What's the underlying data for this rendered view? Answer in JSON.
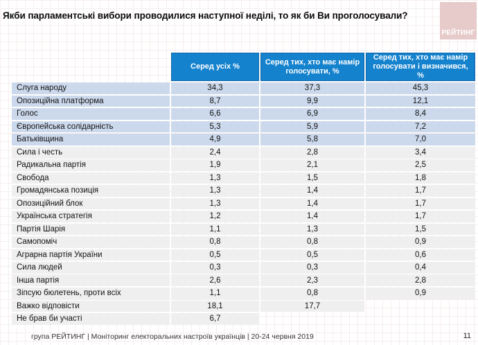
{
  "slide": {
    "title": "Якби парламентські вибори проводилися наступної неділі, то як би Ви проголосували?",
    "logo_text": "РЕЙТИНГ",
    "footer": "група РЕЙТИНГ | Моніторинг електоральних настроїв українців | 20-24 червня 2019",
    "page_number": "11"
  },
  "colors": {
    "header_blue": "#1482cd",
    "header_border": "#0f63a6",
    "highlight_row_blue": "#ccd9ec",
    "row_gray": "#efeff0",
    "logo_pink": "#e7caca"
  },
  "table": {
    "headers": {
      "party": "",
      "among_all": "Серед усіх %",
      "among_intend": "Серед тих, хто має намір голосувати, %",
      "among_decided": "Серед тих, хто має намір голосувати і визначився, %"
    },
    "rows": [
      {
        "party": "Слуга народу",
        "among_all": "34,3",
        "among_intend": "37,3",
        "among_decided": "45,3",
        "highlight": true
      },
      {
        "party": "Опозиційна платформа",
        "among_all": "8,7",
        "among_intend": "9,9",
        "among_decided": "12,1",
        "highlight": true
      },
      {
        "party": "Голос",
        "among_all": "6,6",
        "among_intend": "6,9",
        "among_decided": "8,4",
        "highlight": true
      },
      {
        "party": "Європейська солідарність",
        "among_all": "5,3",
        "among_intend": "5,9",
        "among_decided": "7,2",
        "highlight": true
      },
      {
        "party": "Батьківщина",
        "among_all": "4,9",
        "among_intend": "5,8",
        "among_decided": "7,0",
        "highlight": true
      },
      {
        "party": "Сила і честь",
        "among_all": "2,4",
        "among_intend": "2,8",
        "among_decided": "3,4",
        "highlight": false
      },
      {
        "party": "Радикальна партія",
        "among_all": "1,9",
        "among_intend": "2,1",
        "among_decided": "2,5",
        "highlight": false
      },
      {
        "party": "Свобода",
        "among_all": "1,3",
        "among_intend": "1,5",
        "among_decided": "1,8",
        "highlight": false
      },
      {
        "party": "Громадянська позиція",
        "among_all": "1,3",
        "among_intend": "1,4",
        "among_decided": "1,7",
        "highlight": false
      },
      {
        "party": "Опозиційний блок",
        "among_all": "1,3",
        "among_intend": "1,4",
        "among_decided": "1,7",
        "highlight": false
      },
      {
        "party": "Українська стратегія",
        "among_all": "1,2",
        "among_intend": "1,4",
        "among_decided": "1,7",
        "highlight": false
      },
      {
        "party": "Партія Шарія",
        "among_all": "1,1",
        "among_intend": "1,3",
        "among_decided": "1,5",
        "highlight": false
      },
      {
        "party": "Самопоміч",
        "among_all": "0,8",
        "among_intend": "0,8",
        "among_decided": "0,9",
        "highlight": false
      },
      {
        "party": "Аграрна партія України",
        "among_all": "0,5",
        "among_intend": "0,5",
        "among_decided": "0,6",
        "highlight": false
      },
      {
        "party": "Сила людей",
        "among_all": "0,3",
        "among_intend": "0,3",
        "among_decided": "0,4",
        "highlight": false
      },
      {
        "party": "Інша партія",
        "among_all": "2,6",
        "among_intend": "2,3",
        "among_decided": "2,8",
        "highlight": false
      },
      {
        "party": "Зіпсую бюлетень, проти всіх",
        "among_all": "1,1",
        "among_intend": "0,8",
        "among_decided": "0,9",
        "highlight": false
      },
      {
        "party": "Важко відповісти",
        "among_all": "18,1",
        "among_intend": "17,7",
        "among_decided": null,
        "highlight": false
      },
      {
        "party": "Не брав би участі",
        "among_all": "6,7",
        "among_intend": null,
        "among_decided": null,
        "highlight": false
      }
    ]
  },
  "chart_data": {
    "type": "table",
    "title": "Якби парламентські вибори проводилися наступної неділі, то як би Ви проголосували?",
    "columns": [
      "Серед усіх %",
      "Серед тих, хто має намір голосувати, %",
      "Серед тих, хто має намір голосувати і визначився, %"
    ],
    "categories": [
      "Слуга народу",
      "Опозиційна платформа",
      "Голос",
      "Європейська солідарність",
      "Батьківщина",
      "Сила і честь",
      "Радикальна партія",
      "Свобода",
      "Громадянська позиція",
      "Опозиційний блок",
      "Українська стратегія",
      "Партія Шарія",
      "Самопоміч",
      "Аграрна партія України",
      "Сила людей",
      "Інша партія",
      "Зіпсую бюлетень, проти всіх",
      "Важко відповісти",
      "Не брав би участі"
    ],
    "series": [
      {
        "name": "Серед усіх %",
        "values": [
          34.3,
          8.7,
          6.6,
          5.3,
          4.9,
          2.4,
          1.9,
          1.3,
          1.3,
          1.3,
          1.2,
          1.1,
          0.8,
          0.5,
          0.3,
          2.6,
          1.1,
          18.1,
          6.7
        ]
      },
      {
        "name": "Серед тих, хто має намір голосувати, %",
        "values": [
          37.3,
          9.9,
          6.9,
          5.9,
          5.8,
          2.8,
          2.1,
          1.5,
          1.4,
          1.4,
          1.4,
          1.3,
          0.8,
          0.5,
          0.3,
          2.3,
          0.8,
          17.7,
          null
        ]
      },
      {
        "name": "Серед тих, хто має намір голосувати і визначився, %",
        "values": [
          45.3,
          12.1,
          8.4,
          7.2,
          7.0,
          3.4,
          2.5,
          1.8,
          1.7,
          1.7,
          1.7,
          1.5,
          0.9,
          0.6,
          0.4,
          2.8,
          0.9,
          null,
          null
        ]
      }
    ],
    "layout": {
      "highlighted_rows": 5,
      "grid": false,
      "legend_position": "none"
    }
  }
}
